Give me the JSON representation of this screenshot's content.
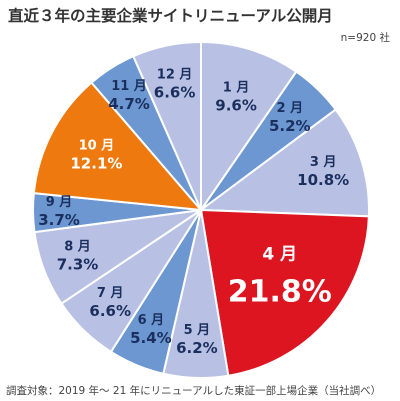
{
  "header": {
    "title": "直近３年の主要企業サイトリニューアル公開月",
    "sample": "n=920 社"
  },
  "footer": {
    "note": "調査対象：2019 年～ 21 年にリニューアルした東証一部上場企業（当社調べ）"
  },
  "colors": {
    "light": "#b8c1e4",
    "medium": "#6c97d1",
    "orange": "#ee7a0f",
    "red": "#dd1520",
    "text_dark": "#333333",
    "text_white": "#ffffff"
  },
  "chart_data": {
    "type": "pie",
    "unit": "%",
    "start": "12 o'clock",
    "direction": "clockwise",
    "slices": [
      {
        "label": "1 月",
        "value": 9.6,
        "display": "9.6%",
        "color": "#b8c1e4"
      },
      {
        "label": "2 月",
        "value": 5.2,
        "display": "5.2%",
        "color": "#6c97d1"
      },
      {
        "label": "3 月",
        "value": 10.8,
        "display": "10.8%",
        "color": "#b8c1e4"
      },
      {
        "label": "4 月",
        "value": 21.8,
        "display": "21.8%",
        "color": "#dd1520"
      },
      {
        "label": "5 月",
        "value": 6.2,
        "display": "6.2%",
        "color": "#b8c1e4"
      },
      {
        "label": "6 月",
        "value": 5.4,
        "display": "5.4%",
        "color": "#6c97d1"
      },
      {
        "label": "7 月",
        "value": 6.6,
        "display": "6.6%",
        "color": "#b8c1e4"
      },
      {
        "label": "8 月",
        "value": 7.3,
        "display": "7.3%",
        "color": "#b8c1e4"
      },
      {
        "label": "9 月",
        "value": 3.7,
        "display": "3.7%",
        "color": "#6c97d1"
      },
      {
        "label": "10 月",
        "value": 12.1,
        "display": "12.1%",
        "color": "#ee7a0f"
      },
      {
        "label": "11 月",
        "value": 4.7,
        "display": "4.7%",
        "color": "#6c97d1"
      },
      {
        "label": "12 月",
        "value": 6.6,
        "display": "6.6%",
        "color": "#b8c1e4"
      }
    ]
  }
}
